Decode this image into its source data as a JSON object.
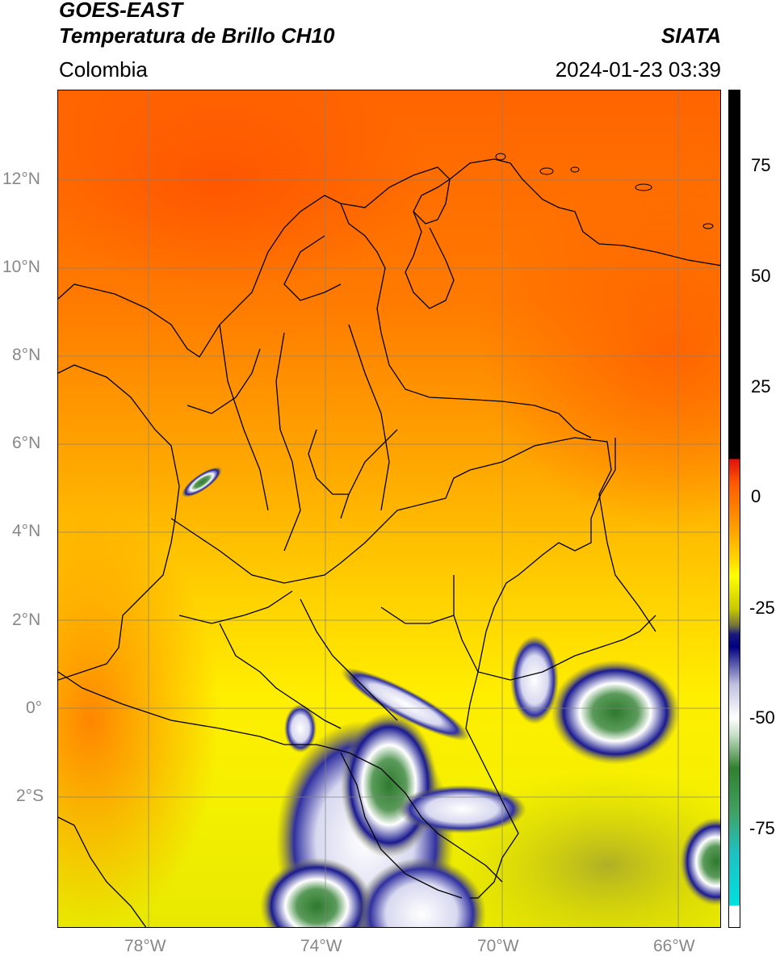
{
  "header": {
    "title_line1": "GOES-EAST",
    "title_line2": "Temperatura de Brillo CH10",
    "brand": "SIATA",
    "region": "Colombia",
    "datetime": "2024-01-23 03:39"
  },
  "map": {
    "lat_ticks": [
      "12°N",
      "10°N",
      "8°N",
      "6°N",
      "4°N",
      "2°N",
      "0°",
      "2°S"
    ],
    "lon_ticks": [
      "78°W",
      "74°W",
      "70°W",
      "66°W"
    ],
    "background_colors": {
      "warm": "#ff6a00",
      "mid": "#ffb000",
      "cool": "#ffff00"
    },
    "cloud_colors": {
      "edge": "#1a1a90",
      "core": "#ffffff",
      "cold": "#3a8a3a"
    }
  },
  "colorbar": {
    "ticks": [
      "75",
      "50",
      "25",
      "0",
      "-25",
      "-50",
      "-75"
    ]
  }
}
